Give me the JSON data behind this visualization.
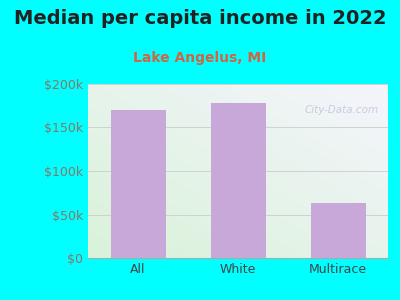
{
  "title": "Median per capita income in 2022",
  "subtitle": "Lake Angelus, MI",
  "categories": [
    "All",
    "White",
    "Multirace"
  ],
  "values": [
    170000,
    178000,
    63000
  ],
  "bar_color": "#c8a8d8",
  "bg_color": "#00ffff",
  "plot_bg_top_right": "#f5f5f8",
  "plot_bg_bottom_left": "#e0f0e0",
  "title_color": "#222222",
  "subtitle_color": "#cc6644",
  "ytick_label_color": "#887766",
  "xtick_label_color": "#444444",
  "ylim": [
    0,
    200000
  ],
  "yticks": [
    0,
    50000,
    100000,
    150000,
    200000
  ],
  "ytick_labels": [
    "$0",
    "$50k",
    "$100k",
    "$150k",
    "$200k"
  ],
  "watermark": "City-Data.com",
  "title_fontsize": 14,
  "subtitle_fontsize": 10,
  "tick_fontsize": 9
}
